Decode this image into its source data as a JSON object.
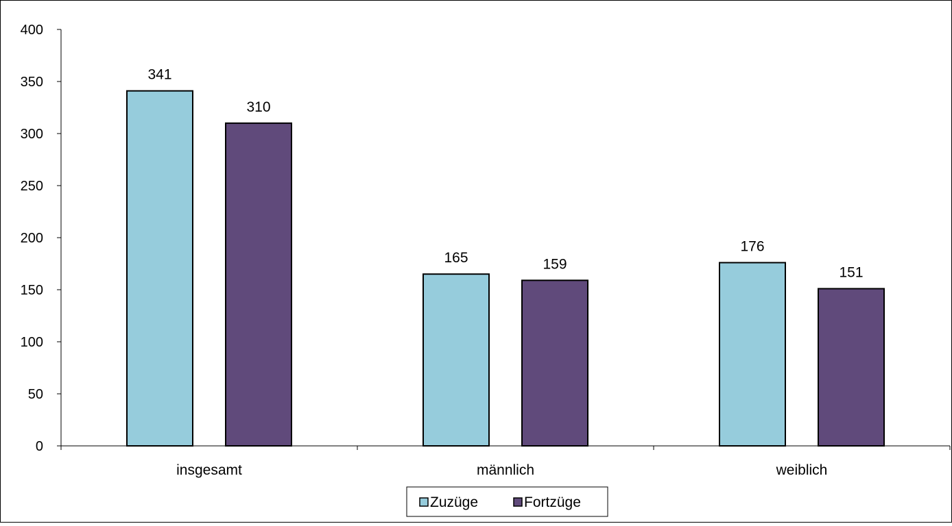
{
  "chart_data": {
    "type": "bar",
    "categories": [
      "insgesamt",
      "männlich",
      "weiblich"
    ],
    "series": [
      {
        "name": "Zuzüge",
        "values": [
          341,
          165,
          176
        ],
        "color": "#96CCDC"
      },
      {
        "name": "Fortzüge",
        "values": [
          310,
          159,
          151
        ],
        "color": "#604A7B"
      }
    ],
    "data_labels": true,
    "ylim": [
      0,
      400
    ],
    "yticks": [
      0,
      50,
      100,
      150,
      200,
      250,
      300,
      350,
      400
    ],
    "grid": false,
    "legend": "bottom",
    "title": "",
    "xlabel": "",
    "ylabel": ""
  }
}
